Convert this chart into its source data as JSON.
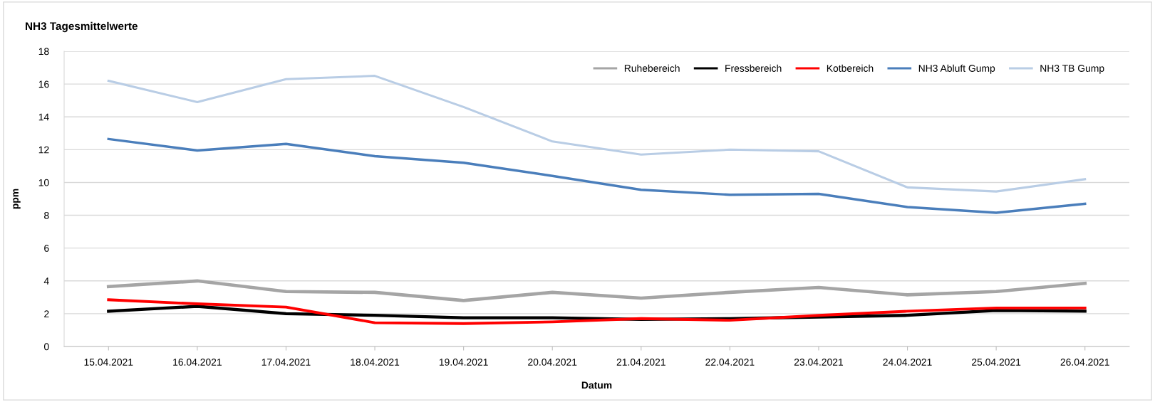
{
  "chart_data": {
    "type": "line",
    "title": "NH3 Tagesmittelwerte",
    "xlabel": "Datum",
    "ylabel": "ppm",
    "categories": [
      "15.04.2021",
      "16.04.2021",
      "17.04.2021",
      "18.04.2021",
      "19.04.2021",
      "20.04.2021",
      "21.04.2021",
      "22.04.2021",
      "23.04.2021",
      "24.04.2021",
      "25.04.2021",
      "26.04.2021"
    ],
    "series": [
      {
        "name": "Ruhebereich",
        "color": "#a5a5a5",
        "values": [
          3.65,
          4.0,
          3.35,
          3.3,
          2.8,
          3.3,
          2.95,
          3.3,
          3.6,
          3.15,
          3.35,
          3.85
        ]
      },
      {
        "name": "Fressbereich",
        "color": "#000000",
        "values": [
          2.15,
          2.45,
          2.0,
          1.9,
          1.75,
          1.75,
          1.65,
          1.7,
          1.8,
          1.9,
          2.2,
          2.15
        ]
      },
      {
        "name": "Kotbereich",
        "color": "#ff0000",
        "values": [
          2.85,
          2.6,
          2.4,
          1.45,
          1.4,
          1.5,
          1.7,
          1.6,
          1.9,
          2.15,
          2.35,
          2.35
        ]
      },
      {
        "name": "NH3 Abluft Gump",
        "color": "#4a7ebb",
        "values": [
          12.65,
          11.95,
          12.35,
          11.6,
          11.2,
          10.4,
          9.55,
          9.25,
          9.3,
          8.5,
          8.15,
          8.7
        ]
      },
      {
        "name": "NH3 TB Gump",
        "color": "#b9cde5",
        "values": [
          16.2,
          14.9,
          16.3,
          16.5,
          14.6,
          12.5,
          11.7,
          12.0,
          11.9,
          9.7,
          9.45,
          10.2
        ]
      }
    ],
    "ylim": [
      0,
      18
    ],
    "yticks": [
      0,
      2,
      4,
      6,
      8,
      10,
      12,
      14,
      16,
      18
    ],
    "grid": "y",
    "legend": "top right",
    "marker": "none",
    "line_style": "solid"
  }
}
